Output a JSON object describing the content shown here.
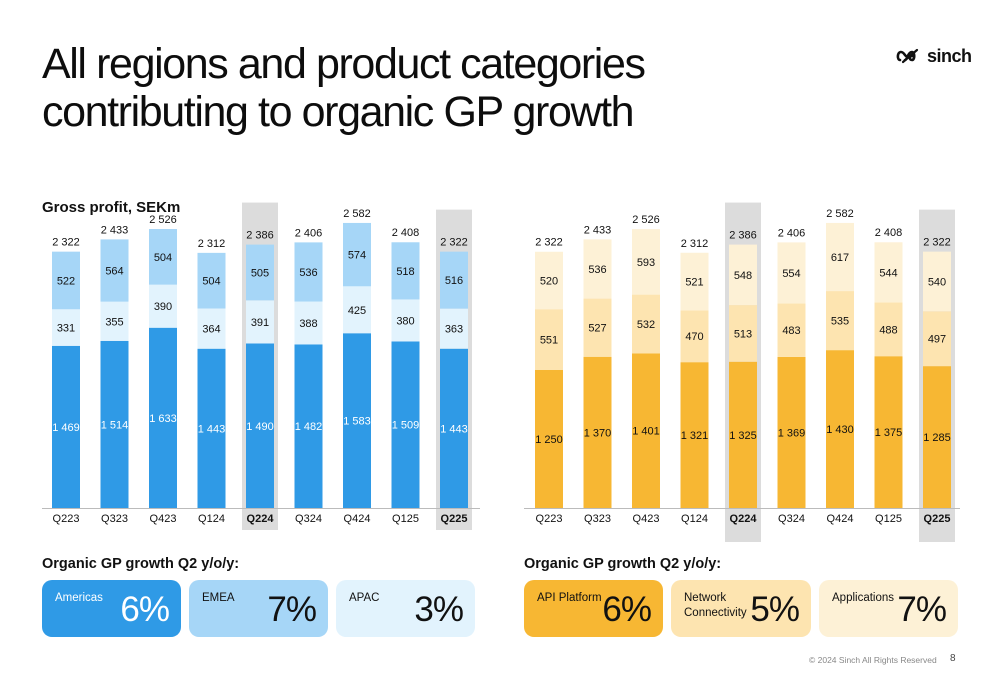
{
  "header": {
    "title_line1": "All regions and product categories",
    "title_line2": "contributing to organic GP growth",
    "logo_text": "sinch"
  },
  "left_section": {
    "title": "Gross profit, SEKm",
    "growth_title": "Organic GP growth Q2 y/o/y:"
  },
  "right_section": {
    "growth_title": "Organic GP growth Q2 y/o/y:"
  },
  "colors": {
    "highlight_bg": "#dcdcdc",
    "left_series": [
      "#2f9ae6",
      "#e2f3fd",
      "#a6d6f7"
    ],
    "right_series": [
      "#f7b733",
      "#fde4b0",
      "#fdf1d6"
    ]
  },
  "chart_data": [
    {
      "type": "bar",
      "stacked": true,
      "categories": [
        "Q223",
        "Q323",
        "Q423",
        "Q124",
        "Q224",
        "Q324",
        "Q424",
        "Q125",
        "Q225"
      ],
      "highlighted": [
        "Q224",
        "Q225"
      ],
      "series": [
        {
          "values": [
            1469,
            1514,
            1633,
            1443,
            1490,
            1482,
            1583,
            1509,
            1443
          ]
        },
        {
          "values": [
            331,
            355,
            390,
            364,
            391,
            388,
            425,
            380,
            363
          ]
        },
        {
          "values": [
            522,
            564,
            504,
            504,
            505,
            536,
            574,
            518,
            516
          ]
        }
      ],
      "totals": [
        2322,
        2433,
        2526,
        2312,
        2386,
        2406,
        2582,
        2408,
        2322
      ],
      "value_labels": [
        [
          "1 469",
          "1 514",
          "1 633",
          "1 443",
          "1 490",
          "1 482",
          "1 583",
          "1 509",
          "1 443"
        ],
        [
          "331",
          "355",
          "390",
          "364",
          "391",
          "388",
          "425",
          "380",
          "363"
        ],
        [
          "522",
          "564",
          "504",
          "504",
          "505",
          "536",
          "574",
          "518",
          "516"
        ]
      ],
      "total_labels": [
        "2 322",
        "2 433",
        "2 526",
        "2 312",
        "2 386",
        "2 406",
        "2 582",
        "2 408",
        "2 322"
      ],
      "title": "Gross profit, SEKm",
      "xlabel": "",
      "ylabel": "",
      "grid": false,
      "legend": "none"
    },
    {
      "type": "bar",
      "stacked": true,
      "categories": [
        "Q223",
        "Q323",
        "Q423",
        "Q124",
        "Q224",
        "Q324",
        "Q424",
        "Q125",
        "Q225"
      ],
      "highlighted": [
        "Q224",
        "Q225"
      ],
      "series": [
        {
          "values": [
            1250,
            1370,
            1401,
            1321,
            1325,
            1369,
            1430,
            1375,
            1285
          ]
        },
        {
          "values": [
            551,
            527,
            532,
            470,
            513,
            483,
            535,
            488,
            497
          ]
        },
        {
          "values": [
            520,
            536,
            593,
            521,
            548,
            554,
            617,
            544,
            540
          ]
        }
      ],
      "totals": [
        2322,
        2433,
        2526,
        2312,
        2386,
        2406,
        2582,
        2408,
        2322
      ],
      "value_labels": [
        [
          "1 250",
          "1 370",
          "1 401",
          "1 321",
          "1 325",
          "1 369",
          "1 430",
          "1 375",
          "1 285"
        ],
        [
          "551",
          "527",
          "532",
          "470",
          "513",
          "483",
          "535",
          "488",
          "497"
        ],
        [
          "520",
          "536",
          "593",
          "521",
          "548",
          "554",
          "617",
          "544",
          "540"
        ]
      ],
      "total_labels": [
        "2 322",
        "2 433",
        "2 526",
        "2 312",
        "2 386",
        "2 406",
        "2 582",
        "2 408",
        "2 322"
      ],
      "title": "",
      "xlabel": "",
      "ylabel": "",
      "grid": false,
      "legend": "none"
    }
  ],
  "left_cards": [
    {
      "label": "Americas",
      "value": "6%",
      "bg": "#2f9ae6",
      "color": "#ffffff"
    },
    {
      "label": "EMEA",
      "value": "7%",
      "bg": "#a6d6f7",
      "color": "#111111"
    },
    {
      "label": "APAC",
      "value": "3%",
      "bg": "#e2f3fd",
      "color": "#111111"
    }
  ],
  "right_cards": [
    {
      "label": "API Platform",
      "value": "6%",
      "bg": "#f7b733",
      "color": "#111111"
    },
    {
      "label": "Network Connectivity",
      "value": "5%",
      "bg": "#fde4b0",
      "color": "#111111"
    },
    {
      "label": "Applications",
      "value": "7%",
      "bg": "#fdf1d6",
      "color": "#111111"
    }
  ],
  "footer": {
    "copyright": "© 2024 Sinch All Rights Reserved",
    "page": "8"
  }
}
